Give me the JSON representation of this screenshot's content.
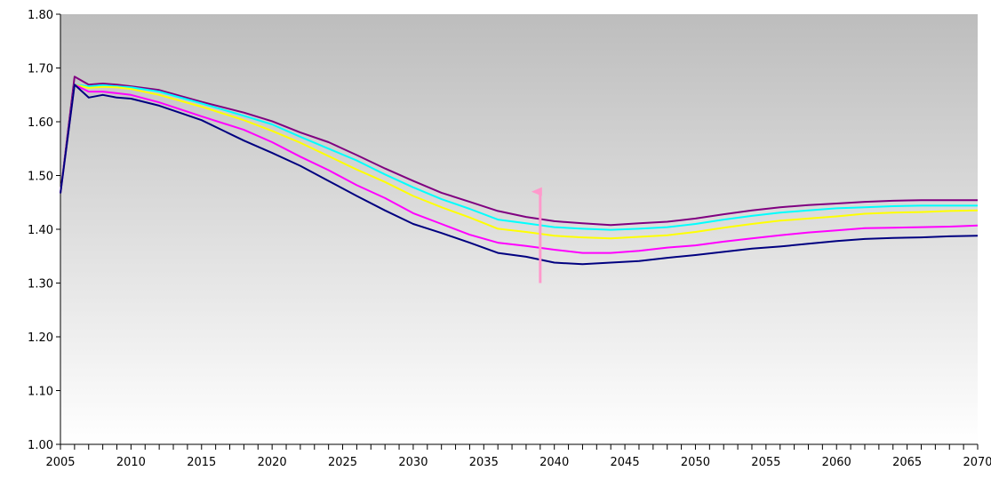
{
  "chart_data": {
    "type": "line",
    "title": "",
    "xlabel": "",
    "ylabel": "",
    "xlim": [
      2005,
      2070
    ],
    "ylim": [
      1.0,
      1.8
    ],
    "grid": false,
    "background": "gradient-gray",
    "x_ticks": [
      2005,
      2010,
      2015,
      2020,
      2025,
      2030,
      2035,
      2040,
      2045,
      2050,
      2055,
      2060,
      2065,
      2070
    ],
    "x_tick_labels": [
      "2005",
      "2010",
      "2015",
      "2020",
      "2025",
      "2030",
      "2035",
      "2040",
      "2045",
      "2050",
      "2055",
      "2060",
      "2065",
      "2070"
    ],
    "y_ticks": [
      1.0,
      1.1,
      1.2,
      1.3,
      1.4,
      1.5,
      1.6,
      1.7,
      1.8
    ],
    "y_tick_labels": [
      "1.00",
      "1.10",
      "1.20",
      "1.30",
      "1.40",
      "1.50",
      "1.60",
      "1.70",
      "1.80"
    ],
    "series": [
      {
        "color": "#800080",
        "x": [
          2005,
          2006,
          2007,
          2008,
          2009,
          2010,
          2012,
          2015,
          2018,
          2020,
          2022,
          2024,
          2026,
          2028,
          2030,
          2032,
          2034,
          2036,
          2038,
          2040,
          2042,
          2044,
          2046,
          2048,
          2050,
          2052,
          2054,
          2056,
          2058,
          2060,
          2062,
          2064,
          2066,
          2068,
          2070
        ],
        "y": [
          1.467,
          1.684,
          1.669,
          1.671,
          1.669,
          1.666,
          1.659,
          1.637,
          1.617,
          1.601,
          1.58,
          1.562,
          1.538,
          1.513,
          1.49,
          1.468,
          1.451,
          1.434,
          1.423,
          1.415,
          1.411,
          1.408,
          1.411,
          1.414,
          1.42,
          1.428,
          1.435,
          1.441,
          1.445,
          1.448,
          1.451,
          1.453,
          1.454,
          1.454,
          1.454
        ]
      },
      {
        "color": "#00ffff",
        "x": [
          2005,
          2006,
          2007,
          2008,
          2009,
          2010,
          2012,
          2015,
          2018,
          2020,
          2022,
          2024,
          2026,
          2028,
          2030,
          2032,
          2034,
          2036,
          2038,
          2040,
          2042,
          2044,
          2046,
          2048,
          2050,
          2052,
          2054,
          2056,
          2058,
          2060,
          2062,
          2064,
          2066,
          2068,
          2070
        ],
        "y": [
          1.467,
          1.669,
          1.666,
          1.668,
          1.666,
          1.664,
          1.656,
          1.634,
          1.611,
          1.595,
          1.572,
          1.55,
          1.528,
          1.502,
          1.478,
          1.456,
          1.438,
          1.418,
          1.411,
          1.404,
          1.401,
          1.399,
          1.401,
          1.404,
          1.41,
          1.418,
          1.425,
          1.431,
          1.435,
          1.439,
          1.441,
          1.443,
          1.444,
          1.444,
          1.444
        ]
      },
      {
        "color": "#ffff00",
        "x": [
          2005,
          2006,
          2007,
          2008,
          2009,
          2010,
          2012,
          2015,
          2018,
          2020,
          2022,
          2024,
          2026,
          2028,
          2030,
          2032,
          2034,
          2036,
          2038,
          2040,
          2042,
          2044,
          2046,
          2048,
          2050,
          2052,
          2054,
          2056,
          2058,
          2060,
          2062,
          2064,
          2066,
          2068,
          2070
        ],
        "y": [
          1.467,
          1.669,
          1.663,
          1.665,
          1.664,
          1.661,
          1.65,
          1.628,
          1.603,
          1.583,
          1.561,
          1.536,
          1.511,
          1.488,
          1.462,
          1.441,
          1.422,
          1.401,
          1.395,
          1.388,
          1.385,
          1.383,
          1.386,
          1.389,
          1.395,
          1.403,
          1.41,
          1.416,
          1.42,
          1.424,
          1.429,
          1.431,
          1.432,
          1.434,
          1.435
        ]
      },
      {
        "color": "#ff00ff",
        "x": [
          2005,
          2006,
          2007,
          2008,
          2009,
          2010,
          2012,
          2015,
          2018,
          2020,
          2022,
          2024,
          2026,
          2028,
          2030,
          2032,
          2034,
          2036,
          2038,
          2040,
          2042,
          2044,
          2046,
          2048,
          2050,
          2052,
          2054,
          2056,
          2058,
          2060,
          2062,
          2064,
          2066,
          2068,
          2070
        ],
        "y": [
          1.467,
          1.669,
          1.656,
          1.656,
          1.653,
          1.65,
          1.636,
          1.61,
          1.585,
          1.562,
          1.535,
          1.51,
          1.482,
          1.458,
          1.43,
          1.41,
          1.39,
          1.375,
          1.369,
          1.362,
          1.356,
          1.356,
          1.36,
          1.366,
          1.37,
          1.377,
          1.383,
          1.389,
          1.394,
          1.398,
          1.402,
          1.403,
          1.404,
          1.405,
          1.407
        ]
      },
      {
        "color": "#000080",
        "x": [
          2005,
          2006,
          2007,
          2008,
          2009,
          2010,
          2012,
          2015,
          2018,
          2020,
          2022,
          2024,
          2026,
          2028,
          2030,
          2032,
          2034,
          2036,
          2038,
          2040,
          2042,
          2044,
          2046,
          2048,
          2050,
          2052,
          2054,
          2056,
          2058,
          2060,
          2062,
          2064,
          2066,
          2068,
          2070
        ],
        "y": [
          1.467,
          1.669,
          1.645,
          1.65,
          1.645,
          1.643,
          1.63,
          1.603,
          1.565,
          1.542,
          1.518,
          1.49,
          1.462,
          1.435,
          1.41,
          1.393,
          1.375,
          1.356,
          1.349,
          1.338,
          1.335,
          1.338,
          1.341,
          1.347,
          1.352,
          1.358,
          1.364,
          1.368,
          1.373,
          1.378,
          1.382,
          1.384,
          1.385,
          1.387,
          1.388
        ]
      }
    ],
    "annotations": [
      {
        "type": "arrow",
        "color": "#ff99cc",
        "x": 2039,
        "y_from": 1.3,
        "y_to": 1.47,
        "direction": "up"
      }
    ]
  }
}
